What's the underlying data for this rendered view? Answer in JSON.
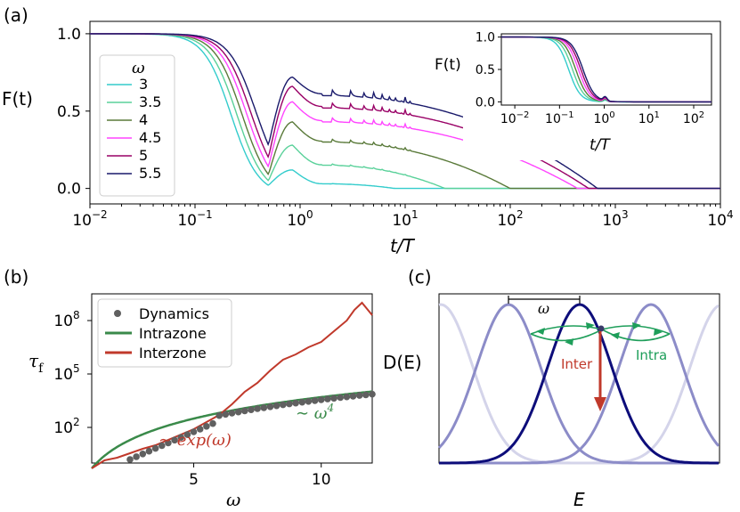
{
  "panel_labels": {
    "a": "(a)",
    "b": "(b)",
    "c": "(c)"
  },
  "chart_data": [
    {
      "panel": "a",
      "type": "line",
      "xscale": "log",
      "xlim": [
        0.01,
        10000
      ],
      "ylim": [
        -0.1,
        1.08
      ],
      "xlabel": "t/T",
      "ylabel": "F(t)",
      "xticks": [
        {
          "value": 0.01,
          "base": "10",
          "exp": "−2"
        },
        {
          "value": 0.1,
          "base": "10",
          "exp": "−1"
        },
        {
          "value": 1,
          "base": "10",
          "exp": "0"
        },
        {
          "value": 10,
          "base": "10",
          "exp": "1"
        },
        {
          "value": 100,
          "base": "10",
          "exp": "2"
        },
        {
          "value": 1000,
          "base": "10",
          "exp": "3"
        },
        {
          "value": 10000,
          "base": "10",
          "exp": "4"
        }
      ],
      "yticks": [
        {
          "value": 0.0,
          "label": "0.0"
        },
        {
          "value": 0.5,
          "label": "0.5"
        },
        {
          "value": 1.0,
          "label": "1.0"
        }
      ],
      "legend_title": "ω",
      "legend_position": "left",
      "series": [
        {
          "name": "3",
          "color": "#33cccc",
          "decay_t": 0.22,
          "dip": 0.02,
          "peak": 0.12,
          "plateau": 0.03,
          "t_final": 2
        },
        {
          "name": "3.5",
          "color": "#5ad19a",
          "decay_t": 0.25,
          "dip": 0.05,
          "peak": 0.28,
          "plateau": 0.15,
          "t_final": 6
        },
        {
          "name": "4",
          "color": "#5a7a3a",
          "decay_t": 0.28,
          "dip": 0.09,
          "peak": 0.43,
          "plateau": 0.3,
          "t_final": 25
        },
        {
          "name": "4.5",
          "color": "#ff44ff",
          "decay_t": 0.31,
          "dip": 0.14,
          "peak": 0.56,
          "plateau": 0.43,
          "t_final": 110
        },
        {
          "name": "5",
          "color": "#990066",
          "decay_t": 0.34,
          "dip": 0.2,
          "peak": 0.66,
          "plateau": 0.52,
          "t_final": 140
        },
        {
          "name": "5.5",
          "color": "#1a1a6b",
          "decay_t": 0.38,
          "dip": 0.28,
          "peak": 0.72,
          "plateau": 0.6,
          "t_final": 170
        }
      ]
    },
    {
      "panel": "a-inset",
      "type": "line",
      "xscale": "log",
      "xlim": [
        0.005,
        250
      ],
      "ylim": [
        -0.05,
        1.05
      ],
      "xlabel": "t/T",
      "ylabel": "F(t)",
      "xticks": [
        {
          "value": 0.01,
          "base": "10",
          "exp": "−2"
        },
        {
          "value": 0.1,
          "base": "10",
          "exp": "−1"
        },
        {
          "value": 1,
          "base": "10",
          "exp": "0"
        },
        {
          "value": 10,
          "base": "10",
          "exp": "1"
        },
        {
          "value": 100,
          "base": "10",
          "exp": "2"
        }
      ],
      "yticks": [
        {
          "value": 0.0,
          "label": "0.0"
        },
        {
          "value": 0.5,
          "label": "0.5"
        },
        {
          "value": 1.0,
          "label": "1.0"
        }
      ]
    },
    {
      "panel": "b",
      "type": "scatter+line",
      "xlim": [
        1,
        12
      ],
      "ylim_log10": [
        0,
        9.5
      ],
      "xlabel": "ω",
      "ylabel": "τ",
      "ylabel_sub": "f",
      "xticks": [
        {
          "value": 5,
          "label": "5"
        },
        {
          "value": 10,
          "label": "10"
        }
      ],
      "yticks": [
        {
          "value_log10": 2,
          "base": "10",
          "exp": "2"
        },
        {
          "value_log10": 5,
          "base": "10",
          "exp": "5"
        },
        {
          "value_log10": 8,
          "base": "10",
          "exp": "8"
        }
      ],
      "legend": [
        "Dynamics",
        "Intrazone",
        "Interzone"
      ],
      "legend_position": "top-left",
      "colors": {
        "dynamics": "#606060",
        "intrazone": "#3a8a4a",
        "interzone": "#c0392b"
      },
      "dynamics_x": [
        2.5,
        2.75,
        3,
        3.25,
        3.5,
        3.75,
        4,
        4.25,
        4.5,
        4.75,
        5,
        5.25,
        5.5,
        5.75,
        6,
        6.25,
        6.5,
        6.75,
        7,
        7.25,
        7.5,
        7.75,
        8,
        8.25,
        8.5,
        8.75,
        9,
        9.25,
        9.5,
        9.75,
        10,
        10.25,
        10.5,
        10.75,
        11,
        11.25,
        11.5,
        11.75,
        12
      ],
      "intrazone": {
        "form": "A*omega^4",
        "log10_A": -0.3
      },
      "interzone_x": [
        1,
        1.5,
        2,
        2.5,
        3,
        3.5,
        4,
        4.5,
        5,
        5.5,
        6,
        6.5,
        7,
        7.5,
        8,
        8.5,
        9,
        9.5,
        10,
        10.5,
        11,
        11.3,
        11.6,
        12
      ],
      "interzone_log10": [
        -0.3,
        0.15,
        0.3,
        0.55,
        0.8,
        1.0,
        1.3,
        1.6,
        1.9,
        2.3,
        2.7,
        3.3,
        4.0,
        4.5,
        5.2,
        5.8,
        6.1,
        6.5,
        6.8,
        7.4,
        8.0,
        8.6,
        9.0,
        8.3
      ],
      "annotations": [
        {
          "text": "∼ ω",
          "sup": "4",
          "color": "#3a8a4a"
        },
        {
          "text": "∼ exp(ω)",
          "color": "#c0392b"
        }
      ]
    },
    {
      "panel": "c",
      "type": "diagram",
      "xlabel": "E",
      "ylabel": "D(E)",
      "bracket_label": "ω",
      "inter_label": "Inter",
      "intra_label": "Intra",
      "colors": {
        "dark": "#0d0d7a",
        "mid": "#8c8cc8",
        "light": "#d4d4ea",
        "inter": "#c0392b",
        "intra": "#1e9e5a"
      }
    }
  ]
}
